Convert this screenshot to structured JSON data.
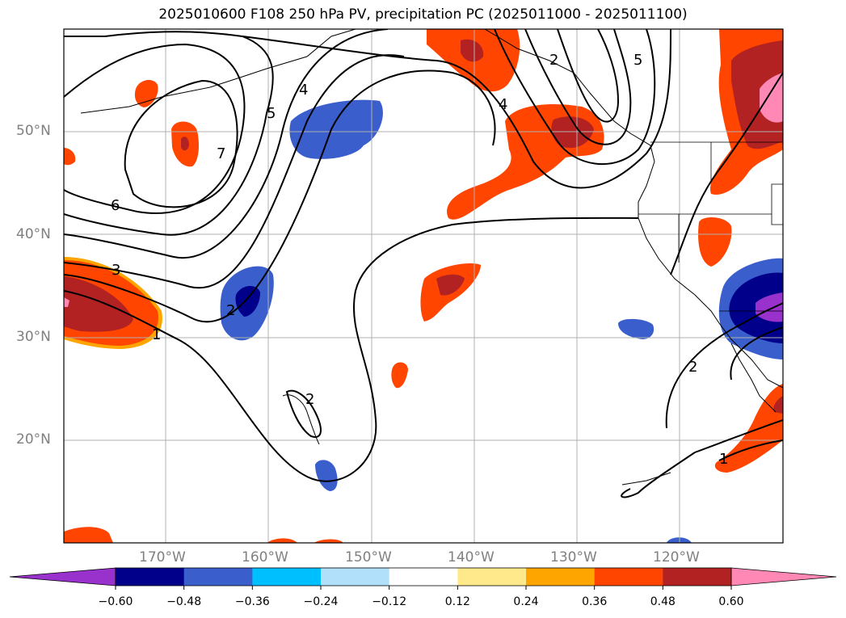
{
  "title": "2025010600 F108 250 hPa PV, precipitation PC (2025011000 - 2025011100)",
  "lat_labels": [
    "50°N",
    "40°N",
    "30°N",
    "20°N"
  ],
  "lon_labels": [
    "170°W",
    "160°W",
    "150°W",
    "140°W",
    "130°W",
    "120°W"
  ],
  "colorbar": {
    "ticks": [
      "−0.60",
      "−0.48",
      "−0.36",
      "−0.24",
      "−0.12",
      "0.12",
      "0.24",
      "0.36",
      "0.48",
      "0.60"
    ],
    "colors": [
      "#9932cc",
      "#00008b",
      "#3a5fcd",
      "#00bfff",
      "#b0e0fa",
      "#ffffff",
      "#ffe98a",
      "#ffa500",
      "#ff4500",
      "#b22222",
      "#ff88b4"
    ]
  },
  "contour_labels": [
    "7",
    "6",
    "5",
    "4",
    "3",
    "2",
    "1",
    "2",
    "2",
    "1",
    "2",
    "5",
    "4"
  ],
  "colors": {
    "contour": "#000000",
    "grid": "#b0b0b0",
    "coast": "#000000"
  }
}
